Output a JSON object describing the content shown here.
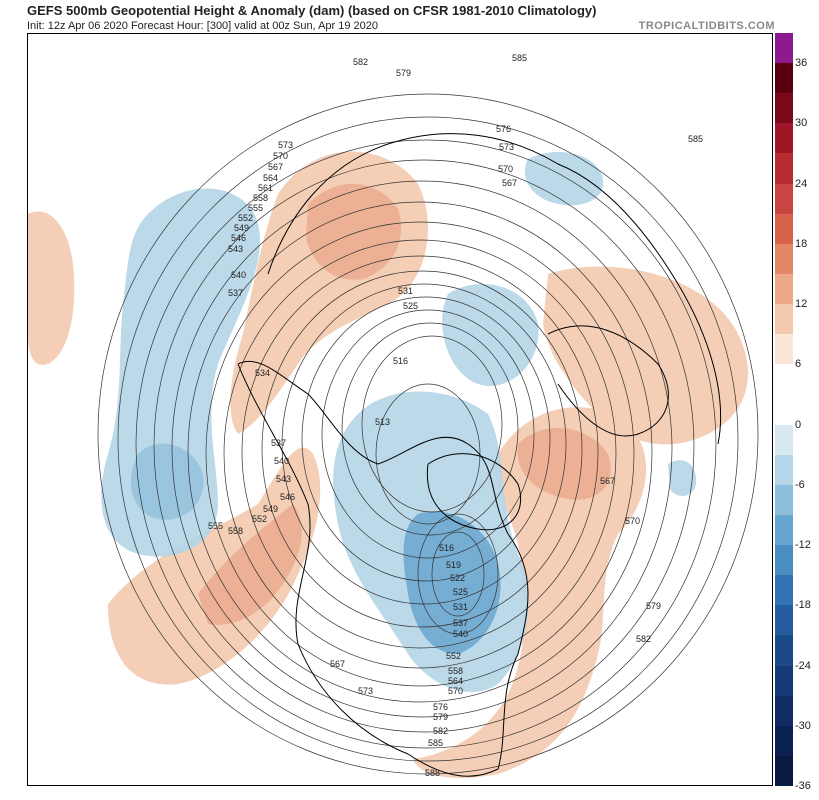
{
  "header": {
    "title": "GEFS 500mb Geopotential Height & Anomaly (dam) (based on CFSR 1981-2010 Climatology)",
    "subtitle": "Init: 12z Apr 06 2020   Forecast Hour: [300]   valid at 00z Sun, Apr 19 2020",
    "brand": "TROPICALTIDBITS.COM"
  },
  "colorbar": {
    "ticks": [
      "36",
      "30",
      "24",
      "18",
      "12",
      "6",
      "0",
      "-6",
      "-12",
      "-18",
      "-24",
      "-30",
      "-36"
    ],
    "colors": [
      "#8b1a8f",
      "#5c0010",
      "#7a0a1a",
      "#9e1525",
      "#b72b33",
      "#c94541",
      "#d7634f",
      "#e2866a",
      "#eba88a",
      "#f3c9ae",
      "#fbe6d8",
      "#ffffff",
      "#ffffff",
      "#d7e8f1",
      "#b5d5e8",
      "#8fbfdc",
      "#68a6cf",
      "#4a8dc1",
      "#3473b1",
      "#255d9f",
      "#1b4a8a",
      "#153a76",
      "#102c62",
      "#0c2150",
      "#071a3f"
    ]
  },
  "contour_labels": [
    {
      "text": "582"
    },
    {
      "text": "579"
    },
    {
      "text": "585"
    },
    {
      "text": "576"
    },
    {
      "text": "573"
    },
    {
      "text": "570"
    },
    {
      "text": "567"
    },
    {
      "text": "585"
    },
    {
      "text": "573"
    },
    {
      "text": "570"
    },
    {
      "text": "567"
    },
    {
      "text": "564"
    },
    {
      "text": "561"
    },
    {
      "text": "558"
    },
    {
      "text": "555"
    },
    {
      "text": "552"
    },
    {
      "text": "549"
    },
    {
      "text": "546"
    },
    {
      "text": "543"
    },
    {
      "text": "540"
    },
    {
      "text": "537"
    },
    {
      "text": "531"
    },
    {
      "text": "525"
    },
    {
      "text": "516"
    },
    {
      "text": "534"
    },
    {
      "text": "513"
    },
    {
      "text": "537"
    },
    {
      "text": "540"
    },
    {
      "text": "543"
    },
    {
      "text": "546"
    },
    {
      "text": "549"
    },
    {
      "text": "552"
    },
    {
      "text": "555"
    },
    {
      "text": "558"
    },
    {
      "text": "516"
    },
    {
      "text": "519"
    },
    {
      "text": "522"
    },
    {
      "text": "525"
    },
    {
      "text": "531"
    },
    {
      "text": "537"
    },
    {
      "text": "540"
    },
    {
      "text": "552"
    },
    {
      "text": "558"
    },
    {
      "text": "564"
    },
    {
      "text": "570"
    },
    {
      "text": "567"
    },
    {
      "text": "573"
    },
    {
      "text": "576"
    },
    {
      "text": "579"
    },
    {
      "text": "582"
    },
    {
      "text": "585"
    },
    {
      "text": "588"
    },
    {
      "text": "567"
    },
    {
      "text": "570"
    },
    {
      "text": "579"
    },
    {
      "text": "582"
    }
  ]
}
